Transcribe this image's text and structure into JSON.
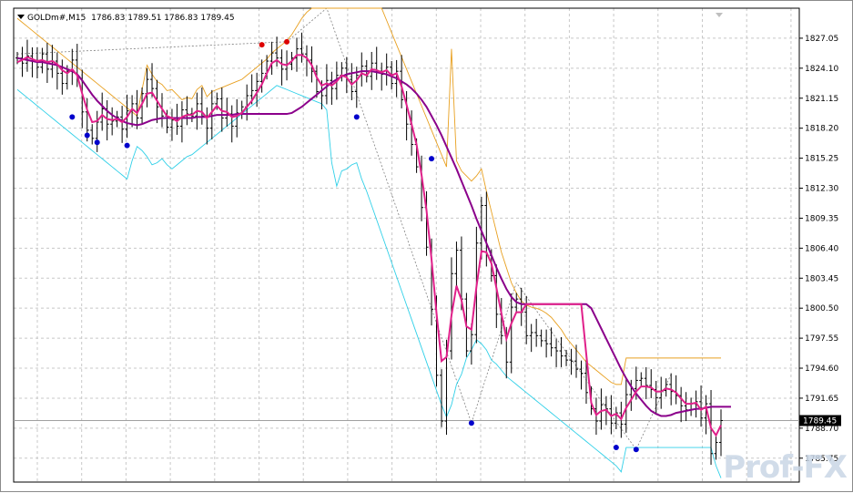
{
  "chart_header": {
    "symbol": "GOLDm#,M15",
    "ohlc": "1786.83 1789.51 1786.83 1789.45"
  },
  "watermark_text": "Prof-FX",
  "current_price_label": "1789.45",
  "colors": {
    "background": "#ffffff",
    "grid": "#c8c8c8",
    "bars": "#000000",
    "ma_purple": "#8b008b",
    "ma_magenta": "#e0208a",
    "envelope_orange": "#e8a020",
    "envelope_cyan": "#30d0e8",
    "dot_blue": "#0000cc",
    "dot_red": "#dd0000",
    "zigzag": "#808080",
    "price_line": "#a0a0a0"
  },
  "chart_data": {
    "type": "line",
    "ylim": [
      1783.4,
      1830.0
    ],
    "y_ticks": [
      "1827.05",
      "1824.10",
      "1821.15",
      "1818.20",
      "1815.25",
      "1812.30",
      "1809.35",
      "1806.40",
      "1803.45",
      "1800.50",
      "1797.55",
      "1794.60",
      "1791.65",
      "1788.70",
      "1785.75"
    ],
    "grid": true,
    "current_price": 1789.45,
    "bars_close": [
      1825.1,
      1824.6,
      1825.3,
      1824.8,
      1824.2,
      1825.5,
      1824.0,
      1824.8,
      1823.6,
      1822.6,
      1823.8,
      1824.9,
      1823.1,
      1819.8,
      1818.0,
      1817.2,
      1818.8,
      1820.1,
      1818.6,
      1818.9,
      1819.3,
      1818.1,
      1819.9,
      1820.6,
      1819.2,
      1821.6,
      1823.0,
      1822.1,
      1820.3,
      1819.4,
      1818.3,
      1819.0,
      1818.4,
      1820.0,
      1819.6,
      1819.4,
      1820.6,
      1819.4,
      1818.2,
      1820.6,
      1821.1,
      1819.2,
      1819.6,
      1818.4,
      1819.7,
      1820.3,
      1821.4,
      1821.9,
      1822.8,
      1823.6,
      1824.8,
      1825.6,
      1825.1,
      1824.0,
      1824.5,
      1825.1,
      1826.0,
      1825.5,
      1824.9,
      1823.8,
      1821.8,
      1821.4,
      1822.9,
      1822.1,
      1823.4,
      1824.1,
      1823.0,
      1821.8,
      1823.4,
      1824.3,
      1823.3,
      1824.6,
      1823.8,
      1823.5,
      1824.2,
      1822.6,
      1823.8,
      1821.0,
      1818.6,
      1816.6,
      1814.4,
      1810.4,
      1806.5,
      1800.4,
      1793.9,
      1789.4,
      1796.3,
      1803.9,
      1806.2,
      1801.4,
      1796.3,
      1797.9,
      1806.9,
      1810.6,
      1805.7,
      1803.7,
      1799.9,
      1797.8,
      1795.2,
      1800.6,
      1801.4,
      1800.1,
      1797.8,
      1798.1,
      1797.8,
      1797.3,
      1797.0,
      1796.6,
      1796.3,
      1795.8,
      1795.4,
      1795.3,
      1794.5,
      1794.1,
      1792.2,
      1790.6,
      1789.4,
      1791.0,
      1790.6,
      1789.2,
      1790.2,
      1789.1,
      1792.0,
      1792.6,
      1793.4,
      1793.6,
      1792.9,
      1792.5,
      1791.7,
      1792.4,
      1793.0,
      1792.3,
      1791.9,
      1790.9,
      1790.5,
      1791.1,
      1791.3,
      1789.7,
      1791.1,
      1786.2,
      1787.3,
      1789.45
    ],
    "series": [
      {
        "color": "#8b008b",
        "values": [
          1825.1,
          1825.0,
          1824.9,
          1824.8,
          1824.7,
          1824.7,
          1824.6,
          1824.5,
          1824.4,
          1824.2,
          1824.0,
          1823.8,
          1823.5,
          1822.9,
          1822.2,
          1821.5,
          1820.9,
          1820.4,
          1819.9,
          1819.5,
          1819.2,
          1818.9,
          1818.7,
          1818.6,
          1818.5,
          1818.6,
          1818.8,
          1819.0,
          1819.1,
          1819.2,
          1819.2,
          1819.2,
          1819.2,
          1819.2,
          1819.2,
          1819.2,
          1819.3,
          1819.3,
          1819.3,
          1819.4,
          1819.5,
          1819.5,
          1819.5,
          1819.5,
          1819.6,
          1819.6,
          1819.6,
          1819.6,
          1819.6,
          1819.6,
          1819.6,
          1819.6,
          1819.6,
          1819.6,
          1819.6,
          1819.7,
          1820.0,
          1820.3,
          1820.7,
          1821.1,
          1821.5,
          1821.9,
          1822.3,
          1822.7,
          1823.0,
          1823.3,
          1823.5,
          1823.6,
          1823.7,
          1823.8,
          1823.8,
          1823.8,
          1823.7,
          1823.6,
          1823.5,
          1823.3,
          1823.1,
          1822.8,
          1822.5,
          1822.1,
          1821.6,
          1821.0,
          1820.3,
          1819.4,
          1818.5,
          1817.5,
          1816.4,
          1815.3,
          1814.2,
          1813.0,
          1811.8,
          1810.6,
          1809.3,
          1808.1,
          1806.9,
          1805.7,
          1804.5,
          1803.4,
          1802.4,
          1801.6,
          1801.1,
          1800.9,
          1800.9,
          1800.9,
          1800.9,
          1800.9,
          1800.9,
          1800.9,
          1800.9,
          1800.9,
          1800.9,
          1800.9,
          1800.9,
          1800.9,
          1800.9,
          1800.5,
          1799.5,
          1798.5,
          1797.5,
          1796.5,
          1795.5,
          1794.5,
          1793.6,
          1792.8,
          1792.1,
          1791.5,
          1790.9,
          1790.4,
          1790.1,
          1789.9,
          1789.9,
          1790.0,
          1790.2,
          1790.3,
          1790.4,
          1790.5,
          1790.6,
          1790.6,
          1790.7,
          1790.8,
          1790.8,
          1790.8,
          1790.8,
          1790.8
        ]
      },
      {
        "color": "#e0208a",
        "values": [
          1824.7,
          1824.9,
          1825.2,
          1825.0,
          1824.8,
          1824.9,
          1824.7,
          1824.8,
          1824.5,
          1823.9,
          1823.6,
          1824.0,
          1823.4,
          1821.6,
          1820.0,
          1818.8,
          1818.9,
          1819.5,
          1819.1,
          1819.0,
          1819.1,
          1818.8,
          1819.3,
          1820.1,
          1819.7,
          1820.6,
          1821.6,
          1821.7,
          1820.9,
          1820.1,
          1819.4,
          1819.2,
          1818.9,
          1819.3,
          1819.5,
          1819.5,
          1819.9,
          1819.8,
          1819.2,
          1819.8,
          1820.4,
          1819.9,
          1819.8,
          1819.3,
          1819.4,
          1819.7,
          1820.3,
          1820.9,
          1821.7,
          1822.5,
          1823.6,
          1824.6,
          1824.9,
          1824.5,
          1824.4,
          1824.8,
          1825.4,
          1825.4,
          1825.1,
          1824.4,
          1823.2,
          1822.4,
          1822.6,
          1822.4,
          1822.8,
          1823.4,
          1823.2,
          1822.5,
          1822.9,
          1823.6,
          1823.4,
          1824.0,
          1823.9,
          1823.7,
          1823.9,
          1823.4,
          1823.6,
          1822.3,
          1820.5,
          1818.6,
          1816.6,
          1813.6,
          1810.1,
          1805.3,
          1800.0,
          1795.3,
          1795.7,
          1799.8,
          1802.7,
          1801.3,
          1798.7,
          1798.4,
          1802.6,
          1806.1,
          1806.0,
          1804.9,
          1802.5,
          1800.0,
          1797.5,
          1799.0,
          1800.1,
          1800.1,
          1800.9,
          1800.9,
          1800.9,
          1800.9,
          1800.9,
          1800.9,
          1800.9,
          1800.9,
          1800.9,
          1800.9,
          1800.9,
          1800.9,
          1796.0,
          1791.2,
          1790.0,
          1790.4,
          1790.5,
          1789.9,
          1790.1,
          1789.6,
          1790.7,
          1791.5,
          1792.3,
          1792.8,
          1792.8,
          1792.7,
          1792.3,
          1792.3,
          1792.6,
          1792.5,
          1792.2,
          1791.6,
          1791.1,
          1791.1,
          1791.2,
          1790.5,
          1790.8,
          1788.7,
          1788.0,
          1789.0
        ]
      },
      {
        "color": "#e8a020",
        "dash": false,
        "values": [
          1829.0,
          1828.6,
          1828.2,
          1827.8,
          1827.4,
          1827.0,
          1826.6,
          1826.2,
          1825.8,
          1825.4,
          1825.0,
          1824.6,
          1824.2,
          1823.8,
          1823.4,
          1823.0,
          1822.6,
          1822.2,
          1821.8,
          1821.4,
          1821.0,
          1820.6,
          1820.2,
          1819.8,
          1819.4,
          1822.0,
          1824.4,
          1823.5,
          1822.8,
          1822.5,
          1821.9,
          1822.0,
          1821.5,
          1821.0,
          1821.2,
          1821.1,
          1822.0,
          1822.4,
          1821.3,
          1821.8,
          1822.0,
          1822.2,
          1822.4,
          1822.6,
          1822.8,
          1823.0,
          1823.4,
          1823.8,
          1824.2,
          1824.6,
          1825.0,
          1825.6,
          1826.0,
          1826.4,
          1826.8,
          1827.4,
          1828.2,
          1829.0,
          1829.6,
          1830.0,
          1830.0,
          1830.0,
          1830.0,
          1830.0,
          1830.0,
          1830.0,
          1830.0,
          1830.0,
          1830.0,
          1830.0,
          1830.0,
          1830.0,
          1830.0,
          1830.0,
          1828.8,
          1827.6,
          1826.4,
          1825.2,
          1824.0,
          1822.8,
          1821.6,
          1820.4,
          1819.2,
          1818.0,
          1816.8,
          1815.6,
          1814.4,
          1826.0,
          1815.0,
          1814.0,
          1813.5,
          1813.0,
          1813.5,
          1814.2,
          1812.0,
          1810.0,
          1808.0,
          1806.0,
          1804.5,
          1803.0,
          1802.0,
          1801.2,
          1800.8,
          1800.6,
          1800.5,
          1800.3,
          1800.0,
          1799.6,
          1799.0,
          1798.4,
          1797.6,
          1797.0,
          1796.4,
          1795.8,
          1795.2,
          1794.8,
          1794.4,
          1794.0,
          1793.6,
          1793.2,
          1793.0,
          1793.0,
          1795.6,
          1795.6,
          1795.6,
          1795.6,
          1795.6,
          1795.6,
          1795.6,
          1795.6,
          1795.6,
          1795.6,
          1795.6,
          1795.6,
          1795.6,
          1795.6,
          1795.6,
          1795.6,
          1795.6,
          1795.6,
          1795.6,
          1795.6
        ]
      },
      {
        "color": "#30d0e8",
        "values": [
          1822.0,
          1821.6,
          1821.2,
          1820.8,
          1820.4,
          1820.0,
          1819.6,
          1819.2,
          1818.8,
          1818.4,
          1818.0,
          1817.6,
          1817.2,
          1816.8,
          1816.4,
          1816.0,
          1815.6,
          1815.2,
          1814.8,
          1814.4,
          1814.0,
          1813.6,
          1813.2,
          1815.0,
          1816.4,
          1816.0,
          1815.4,
          1814.6,
          1814.8,
          1815.2,
          1814.6,
          1814.2,
          1814.6,
          1815.0,
          1815.4,
          1815.6,
          1816.0,
          1816.4,
          1816.8,
          1817.2,
          1817.6,
          1818.0,
          1818.4,
          1818.8,
          1819.2,
          1819.6,
          1820.0,
          1820.4,
          1820.8,
          1821.2,
          1821.6,
          1822.0,
          1822.4,
          1822.2,
          1822.0,
          1821.8,
          1821.6,
          1821.4,
          1821.2,
          1821.0,
          1820.8,
          1820.6,
          1820.0,
          1814.8,
          1812.5,
          1814.0,
          1814.2,
          1814.6,
          1814.8,
          1813.2,
          1812.0,
          1810.6,
          1809.2,
          1807.8,
          1806.4,
          1805.0,
          1803.6,
          1802.2,
          1800.8,
          1799.4,
          1798.0,
          1796.6,
          1795.2,
          1793.8,
          1792.4,
          1791.0,
          1789.8,
          1791.0,
          1793.0,
          1794.0,
          1795.6,
          1796.4,
          1797.4,
          1797.0,
          1796.4,
          1795.4,
          1795.0,
          1794.4,
          1793.8,
          1793.4,
          1793.0,
          1792.6,
          1792.2,
          1791.8,
          1791.4,
          1791.0,
          1790.6,
          1790.2,
          1789.8,
          1789.4,
          1789.0,
          1788.6,
          1788.2,
          1787.8,
          1787.4,
          1787.0,
          1786.6,
          1786.2,
          1785.8,
          1785.4,
          1785.0,
          1784.4,
          1786.8,
          1786.8,
          1786.8,
          1786.8,
          1786.8,
          1786.8,
          1786.8,
          1786.8,
          1786.8,
          1786.8,
          1786.8,
          1786.8,
          1786.8,
          1786.8,
          1786.8,
          1786.8,
          1786.8,
          1786.8,
          1785.0,
          1783.8
        ]
      }
    ],
    "dots_low": [
      {
        "bar": 11,
        "price": 1819.3
      },
      {
        "bar": 14,
        "price": 1817.5
      },
      {
        "bar": 16,
        "price": 1816.8
      },
      {
        "bar": 22,
        "price": 1816.5
      },
      {
        "bar": 68,
        "price": 1819.3
      },
      {
        "bar": 83,
        "price": 1815.2
      },
      {
        "bar": 91,
        "price": 1789.2
      },
      {
        "bar": 120,
        "price": 1786.8
      },
      {
        "bar": 124,
        "price": 1786.6
      }
    ],
    "dots_high": [
      {
        "bar": 49,
        "price": 1826.4
      },
      {
        "bar": 54,
        "price": 1826.7
      }
    ]
  }
}
